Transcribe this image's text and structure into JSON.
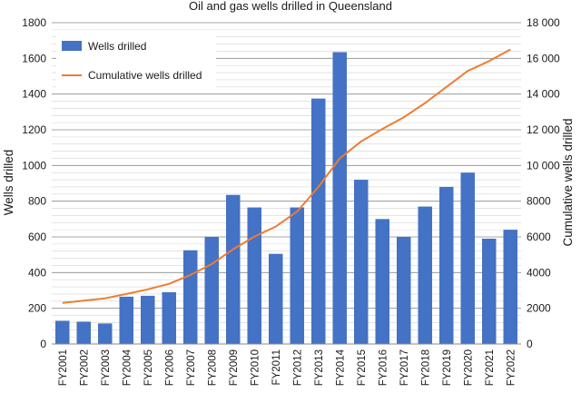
{
  "chart_data": {
    "type": "bar",
    "title": "Oil and gas wells drilled in Queensland",
    "ylabel": "Wells drilled",
    "y2label": "Cumulative wells drilled",
    "ylim": [
      0,
      1800
    ],
    "y2lim": [
      0,
      18000
    ],
    "yticks": [
      "0",
      "200",
      "400",
      "600",
      "800",
      "1000",
      "1200",
      "1400",
      "1600",
      "1800"
    ],
    "y2ticks": [
      "0",
      "2000",
      "4000",
      "6000",
      "8000",
      "10 000",
      "12 000",
      "14 000",
      "16 000",
      "18 000"
    ],
    "categories": [
      "FY2001",
      "FY2002",
      "FY2003",
      "FY2004",
      "FY2005",
      "FY2006",
      "FY2007",
      "FY2008",
      "FY2009",
      "FY2010",
      "FY2011",
      "FY2012",
      "FY2013",
      "FY2014",
      "FY2015",
      "FY2016",
      "FY2017",
      "FY2018",
      "FY2019",
      "FY2020",
      "FY2021",
      "FY2022"
    ],
    "series": [
      {
        "name": "Wells drilled",
        "type": "bar",
        "axis": "left",
        "color": "#4472c4",
        "values": [
          130,
          125,
          115,
          265,
          270,
          290,
          525,
          600,
          835,
          765,
          505,
          765,
          1375,
          1635,
          920,
          700,
          600,
          770,
          880,
          960,
          590,
          640
        ]
      },
      {
        "name": "Cumulative wells drilled",
        "type": "line",
        "axis": "right",
        "color": "#ed7d31",
        "values": [
          2300,
          2430,
          2560,
          2800,
          3060,
          3370,
          3870,
          4480,
          5310,
          6020,
          6580,
          7420,
          8800,
          10400,
          11350,
          12050,
          12700,
          13500,
          14400,
          15300,
          15850,
          16500
        ]
      }
    ],
    "grid": true,
    "legend_position": "top-left"
  }
}
